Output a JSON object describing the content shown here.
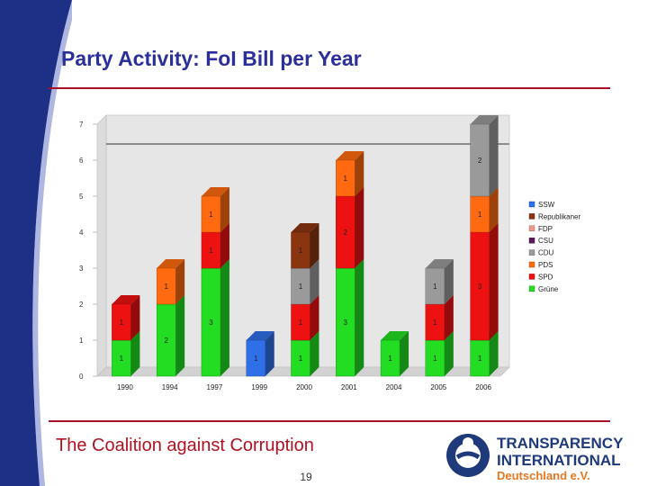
{
  "title": "Party Activity: FoI Bill per Year",
  "footer": {
    "text": "The Coalition against Corruption",
    "page": "19"
  },
  "logo": {
    "line1": "TRANSPARENCY",
    "line2": "INTERNATIONAL",
    "line3": "Deutschland e.V."
  },
  "colors": {
    "title": "#2b2f9a",
    "rule": "#a8102a",
    "footer": "#b01221",
    "logo_blue": "#1f3a7a",
    "logo_orange": "#e87722"
  },
  "chart_data": {
    "type": "bar",
    "stacked": true,
    "categories": [
      "1990",
      "1994",
      "1997",
      "1999",
      "2000",
      "2001",
      "2004",
      "2005",
      "2006"
    ],
    "yticks": [
      "0",
      "1",
      "2",
      "3",
      "4",
      "5",
      "6",
      "7"
    ],
    "ylim": [
      0,
      7
    ],
    "reference_line": 6.2,
    "legend_position": "right",
    "series": [
      {
        "name": "Grüne",
        "color": "#22dd22",
        "values": [
          1,
          2,
          3,
          0,
          1,
          3,
          1,
          1,
          1
        ],
        "labels": [
          "1",
          "2",
          "3",
          "",
          "1",
          "3",
          "1",
          "1",
          "1"
        ]
      },
      {
        "name": "SPD",
        "color": "#ee1111",
        "values": [
          1,
          0,
          1,
          0,
          1,
          2,
          0,
          1,
          3
        ],
        "labels": [
          "1",
          "",
          "1",
          "",
          "1",
          "2",
          "",
          "1",
          "3"
        ]
      },
      {
        "name": "PDS",
        "color": "#ff6a10",
        "values": [
          0,
          1,
          1,
          0,
          0,
          1,
          0,
          0,
          1
        ],
        "labels": [
          "",
          "1",
          "1",
          "",
          "",
          "1",
          "",
          "",
          "1"
        ]
      },
      {
        "name": "CDU",
        "color": "#9a9a9a",
        "values": [
          0,
          0,
          0,
          0,
          1,
          0,
          0,
          1,
          2
        ],
        "labels": [
          "",
          "",
          "",
          "",
          "1",
          "",
          "",
          "1",
          "2"
        ]
      },
      {
        "name": "CSU",
        "color": "#5a1a5a",
        "values": [
          0,
          0,
          0,
          0,
          0,
          0,
          0,
          0,
          0
        ],
        "labels": [
          "",
          "",
          "",
          "",
          "",
          "",
          "",
          "",
          ""
        ]
      },
      {
        "name": "FDP",
        "color": "#ee9988",
        "values": [
          0,
          0,
          0,
          0,
          0,
          0,
          0,
          0,
          0
        ],
        "labels": [
          "",
          "",
          "",
          "",
          "",
          "",
          "",
          "",
          ""
        ]
      },
      {
        "name": "Republikaner",
        "color": "#8b3510",
        "values": [
          0,
          0,
          0,
          0,
          1,
          0,
          0,
          0,
          0
        ],
        "labels": [
          "",
          "",
          "",
          "",
          "1",
          "",
          "",
          "",
          ""
        ]
      },
      {
        "name": "SSW",
        "color": "#2f6fe8",
        "values": [
          0,
          0,
          0,
          1,
          0,
          0,
          0,
          0,
          0
        ],
        "labels": [
          "",
          "",
          "",
          "1",
          "",
          "",
          "",
          "",
          ""
        ]
      }
    ],
    "legend_order": [
      "SSW",
      "Republikaner",
      "FDP",
      "CSU",
      "CDU",
      "PDS",
      "SPD",
      "Grüne"
    ]
  }
}
